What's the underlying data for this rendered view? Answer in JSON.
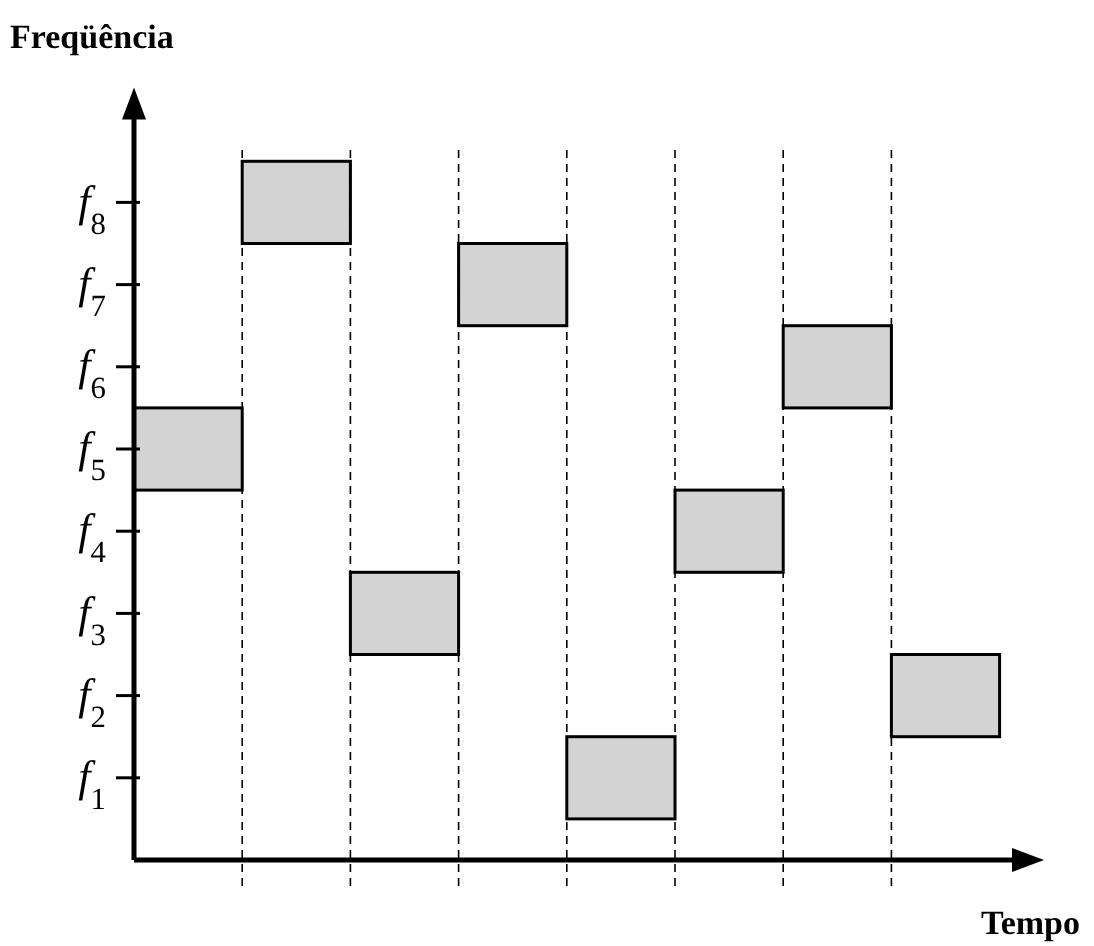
{
  "chart_data": {
    "type": "bar",
    "xlabel": "Tempo",
    "ylabel": "Freqüência",
    "categories": [
      null,
      null,
      null,
      null,
      null,
      null,
      null,
      null
    ],
    "values": [
      1,
      1,
      1,
      1,
      1,
      1,
      1,
      1
    ],
    "base": [
      4.5,
      7.5,
      2.5,
      6.5,
      0.5,
      3.5,
      5.5,
      1.5
    ],
    "color": "#d3d3d3",
    "ylim": [
      0,
      9.3
    ],
    "yticks": [
      {
        "value": 1,
        "label": "f$_{1}$"
      },
      {
        "value": 2,
        "label": "f$_{2}$"
      },
      {
        "value": 3,
        "label": "f$_{3}$"
      },
      {
        "value": 4,
        "label": "f$_{4}$"
      },
      {
        "value": 5,
        "label": "f$_{5}$"
      },
      {
        "value": 6,
        "label": "f$_{6}$"
      },
      {
        "value": 7,
        "label": "f$_{7}$"
      },
      {
        "value": 8,
        "label": "f$_{8}$"
      }
    ],
    "grid": "x"
  }
}
